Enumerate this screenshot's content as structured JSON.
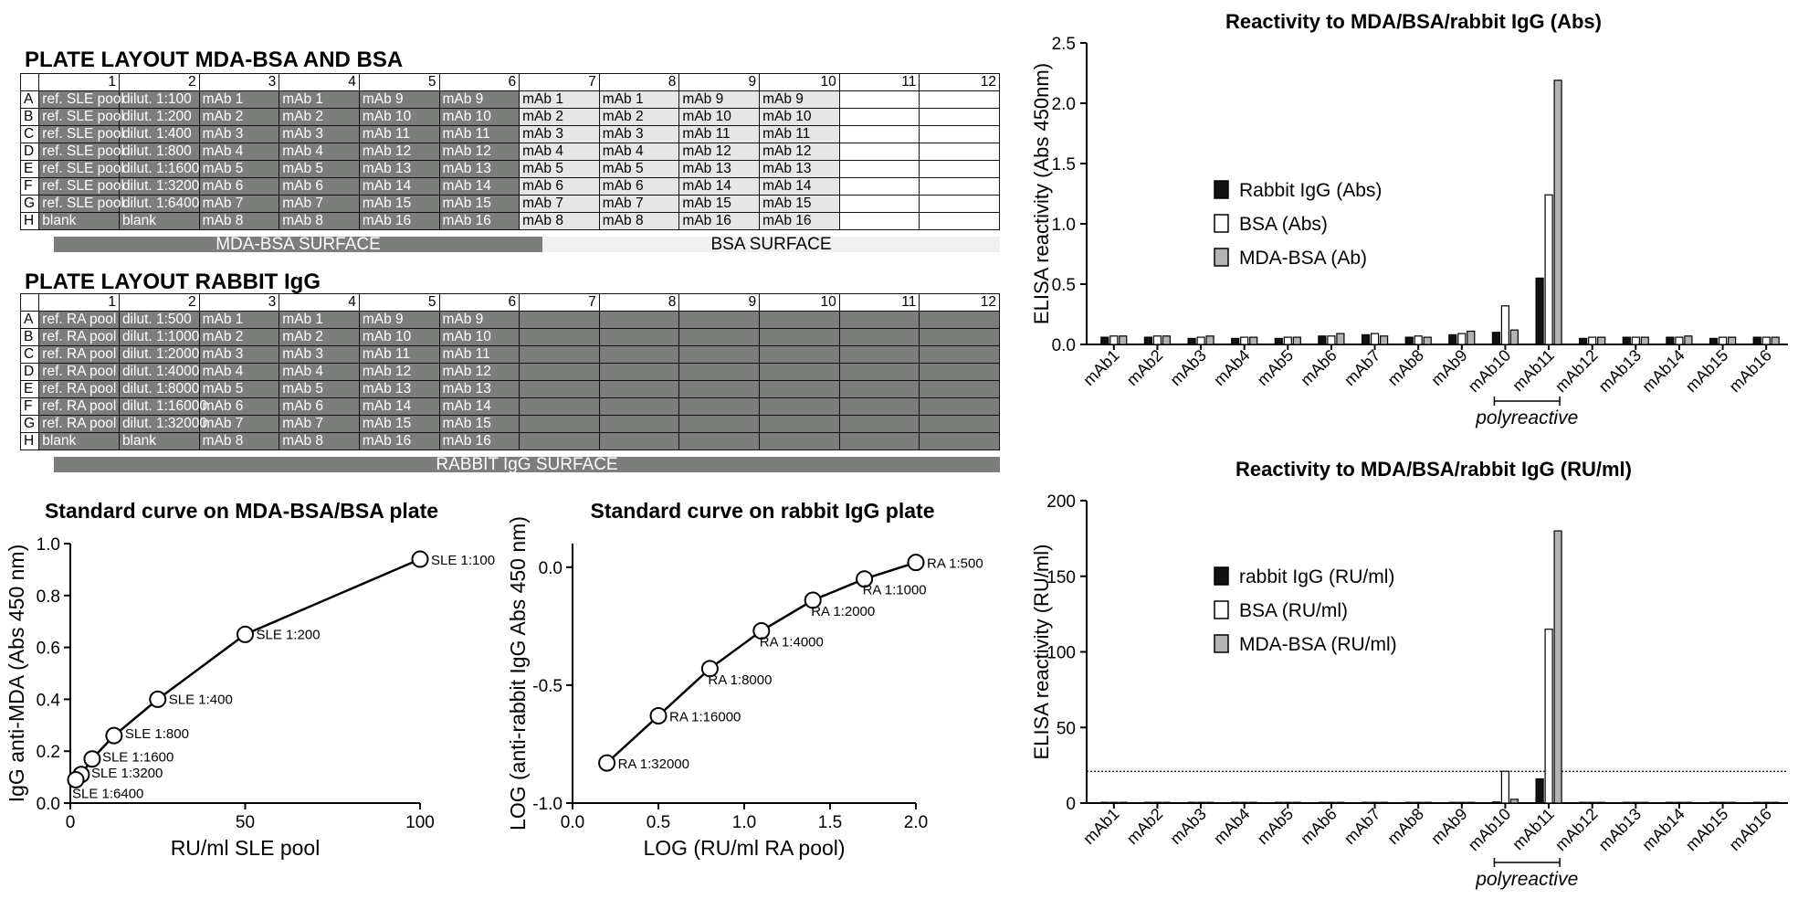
{
  "plate1": {
    "title": "PLATE LAYOUT MDA-BSA AND BSA",
    "columns": [
      "1",
      "2",
      "3",
      "4",
      "5",
      "6",
      "7",
      "8",
      "9",
      "10",
      "11",
      "12"
    ],
    "rows": [
      {
        "label": "A",
        "cells": [
          "ref. SLE pool",
          "dilut. 1:100",
          "mAb 1",
          "mAb 1",
          "mAb 9",
          "mAb 9",
          "mAb 1",
          "mAb 1",
          "mAb 9",
          "mAb 9",
          "",
          ""
        ]
      },
      {
        "label": "B",
        "cells": [
          "ref. SLE pool",
          "dilut. 1:200",
          "mAb 2",
          "mAb 2",
          "mAb 10",
          "mAb 10",
          "mAb 2",
          "mAb 2",
          "mAb 10",
          "mAb 10",
          "",
          ""
        ]
      },
      {
        "label": "C",
        "cells": [
          "ref. SLE pool",
          "dilut. 1:400",
          "mAb 3",
          "mAb 3",
          "mAb 11",
          "mAb 11",
          "mAb 3",
          "mAb 3",
          "mAb 11",
          "mAb 11",
          "",
          ""
        ]
      },
      {
        "label": "D",
        "cells": [
          "ref. SLE pool",
          "dilut. 1:800",
          "mAb 4",
          "mAb 4",
          "mAb 12",
          "mAb 12",
          "mAb 4",
          "mAb 4",
          "mAb 12",
          "mAb 12",
          "",
          ""
        ]
      },
      {
        "label": "E",
        "cells": [
          "ref. SLE pool",
          "dilut. 1:1600",
          "mAb 5",
          "mAb 5",
          "mAb 13",
          "mAb 13",
          "mAb 5",
          "mAb 5",
          "mAb 13",
          "mAb 13",
          "",
          ""
        ]
      },
      {
        "label": "F",
        "cells": [
          "ref. SLE pool",
          "dilut. 1:3200",
          "mAb 6",
          "mAb 6",
          "mAb 14",
          "mAb 14",
          "mAb 6",
          "mAb 6",
          "mAb 14",
          "mAb 14",
          "",
          ""
        ]
      },
      {
        "label": "G",
        "cells": [
          "ref. SLE pool",
          "dilut. 1:6400",
          "mAb 7",
          "mAb 7",
          "mAb 15",
          "mAb 15",
          "mAb 7",
          "mAb 7",
          "mAb 15",
          "mAb 15",
          "",
          ""
        ]
      },
      {
        "label": "H",
        "cells": [
          "blank",
          "blank",
          "mAb 8",
          "mAb 8",
          "mAb 16",
          "mAb 16",
          "mAb 8",
          "mAb 8",
          "mAb 16",
          "mAb 16",
          "",
          ""
        ]
      }
    ],
    "surface_left": "MDA-BSA SURFACE",
    "surface_right": "BSA SURFACE"
  },
  "plate2": {
    "title": "PLATE LAYOUT RABBIT IgG",
    "columns": [
      "1",
      "2",
      "3",
      "4",
      "5",
      "6",
      "7",
      "8",
      "9",
      "10",
      "11",
      "12"
    ],
    "rows": [
      {
        "label": "A",
        "cells": [
          "ref. RA pool",
          "dilut. 1:500",
          "mAb 1",
          "mAb 1",
          "mAb 9",
          "mAb 9",
          "",
          "",
          "",
          "",
          "",
          ""
        ]
      },
      {
        "label": "B",
        "cells": [
          "ref. RA pool",
          "dilut. 1:1000",
          "mAb 2",
          "mAb 2",
          "mAb 10",
          "mAb 10",
          "",
          "",
          "",
          "",
          "",
          ""
        ]
      },
      {
        "label": "C",
        "cells": [
          "ref. RA pool",
          "dilut. 1:2000",
          "mAb 3",
          "mAb 3",
          "mAb 11",
          "mAb 11",
          "",
          "",
          "",
          "",
          "",
          ""
        ]
      },
      {
        "label": "D",
        "cells": [
          "ref. RA pool",
          "dilut. 1:4000",
          "mAb 4",
          "mAb 4",
          "mAb 12",
          "mAb 12",
          "",
          "",
          "",
          "",
          "",
          ""
        ]
      },
      {
        "label": "E",
        "cells": [
          "ref. RA pool",
          "dilut. 1:8000",
          "mAb 5",
          "mAb 5",
          "mAb 13",
          "mAb 13",
          "",
          "",
          "",
          "",
          "",
          ""
        ]
      },
      {
        "label": "F",
        "cells": [
          "ref. RA pool",
          "dilut. 1:16000",
          "mAb 6",
          "mAb 6",
          "mAb 14",
          "mAb 14",
          "",
          "",
          "",
          "",
          "",
          ""
        ]
      },
      {
        "label": "G",
        "cells": [
          "ref. RA pool",
          "dilut. 1:32000",
          "mAb 7",
          "mAb 7",
          "mAb 15",
          "mAb 15",
          "",
          "",
          "",
          "",
          "",
          ""
        ]
      },
      {
        "label": "H",
        "cells": [
          "blank",
          "blank",
          "mAb 8",
          "mAb 8",
          "mAb 16",
          "mAb 16",
          "",
          "",
          "",
          "",
          "",
          ""
        ]
      }
    ],
    "surface": "RABBIT IgG  SURFACE"
  },
  "colors": {
    "dark": "#7b7e7b",
    "light": "#e6e6e6",
    "black": "#111111",
    "white": "#ffffff",
    "grey": "#b2b4b2"
  },
  "chart_data": [
    {
      "id": "std-mda",
      "type": "line",
      "title": "Standard curve on MDA-BSA/BSA plate",
      "xlabel": "RU/ml SLE pool",
      "ylabel": "IgG anti-MDA (Abs 450 nm)",
      "xlim": [
        0,
        100
      ],
      "ylim": [
        0,
        1.0
      ],
      "xticks": [
        0,
        50,
        100
      ],
      "yticks": [
        0.0,
        0.2,
        0.4,
        0.6,
        0.8,
        1.0
      ],
      "xtick_labels": [
        "0",
        "50",
        "100"
      ],
      "ytick_labels": [
        "0.0",
        "0.2",
        "0.4",
        "0.6",
        "0.8",
        "1.0"
      ],
      "points": [
        {
          "x": 100,
          "y": 0.94,
          "label": "SLE 1:100"
        },
        {
          "x": 50,
          "y": 0.65,
          "label": "SLE  1:200"
        },
        {
          "x": 25,
          "y": 0.4,
          "label": "SLE  1:400"
        },
        {
          "x": 12.5,
          "y": 0.26,
          "label": "SLE 1:800"
        },
        {
          "x": 6.25,
          "y": 0.17,
          "label": "SLE  1:1600"
        },
        {
          "x": 3.125,
          "y": 0.11,
          "label": "SLE  1:3200"
        },
        {
          "x": 1.5625,
          "y": 0.09,
          "label": "SLE 1:6400"
        }
      ]
    },
    {
      "id": "std-rabbit",
      "type": "line",
      "title": "Standard curve on rabbit IgG plate",
      "xlabel": "LOG (RU/ml RA pool)",
      "ylabel": "LOG (anti-rabbit IgG Abs 450 nm)",
      "xlim": [
        0,
        2.0
      ],
      "ylim": [
        -1.0,
        0.1
      ],
      "xticks": [
        0,
        0.5,
        1.0,
        1.5,
        2.0
      ],
      "yticks": [
        0.0,
        -0.5,
        -1.0
      ],
      "xtick_labels": [
        "0.0",
        "0.5",
        "1.0",
        "1.5",
        "2.0"
      ],
      "ytick_labels": [
        "0.0",
        "-0.5",
        "-1.0"
      ],
      "points": [
        {
          "x": 2.0,
          "y": 0.02,
          "label": "RA 1:500"
        },
        {
          "x": 1.7,
          "y": -0.05,
          "label": "RA 1:1000"
        },
        {
          "x": 1.4,
          "y": -0.14,
          "label": "RA 1:2000"
        },
        {
          "x": 1.1,
          "y": -0.27,
          "label": "RA 1:4000"
        },
        {
          "x": 0.8,
          "y": -0.43,
          "label": "RA 1:8000"
        },
        {
          "x": 0.5,
          "y": -0.63,
          "label": "RA 1:16000"
        },
        {
          "x": 0.2,
          "y": -0.83,
          "label": "RA 1:32000"
        }
      ]
    },
    {
      "id": "bar-abs",
      "type": "bar",
      "title": "Reactivity to MDA/BSA/rabbit IgG (Abs)",
      "ylabel": "ELISA reactivity (Abs 450nm)",
      "ylim": [
        0,
        2.5
      ],
      "yticks": [
        0.0,
        0.5,
        1.0,
        1.5,
        2.0,
        2.5
      ],
      "ytick_labels": [
        "0.0",
        "0.5",
        "1.0",
        "1.5",
        "2.0",
        "2.5"
      ],
      "categories": [
        "mAb1",
        "mAb2",
        "mAb3",
        "mAb4",
        "mAb5",
        "mAb6",
        "mAb7",
        "mAb8",
        "mAb9",
        "mAb10",
        "mAb11",
        "mAb12",
        "mAb13",
        "mAb14",
        "mAb15",
        "mAb16"
      ],
      "series": [
        {
          "name": "Rabbit IgG (Abs)",
          "color": "#111111",
          "values": [
            0.06,
            0.06,
            0.05,
            0.05,
            0.05,
            0.07,
            0.08,
            0.06,
            0.08,
            0.1,
            0.55,
            0.05,
            0.06,
            0.06,
            0.05,
            0.06
          ]
        },
        {
          "name": "BSA (Abs)",
          "color": "#ffffff",
          "values": [
            0.07,
            0.07,
            0.06,
            0.06,
            0.06,
            0.07,
            0.09,
            0.07,
            0.09,
            0.32,
            1.24,
            0.06,
            0.06,
            0.06,
            0.06,
            0.06
          ]
        },
        {
          "name": "MDA-BSA (Ab)",
          "color": "#b2b4b2",
          "values": [
            0.07,
            0.07,
            0.07,
            0.06,
            0.06,
            0.09,
            0.07,
            0.06,
            0.11,
            0.12,
            2.19,
            0.06,
            0.06,
            0.07,
            0.06,
            0.06
          ]
        }
      ],
      "annotation": "polyreactive",
      "bracket": [
        "mAb10",
        "mAb11"
      ]
    },
    {
      "id": "bar-ru",
      "type": "bar",
      "title": "Reactivity to MDA/BSA/rabbit IgG (RU/ml)",
      "ylabel": "ELISA reactivity (RU/ml)",
      "ylim": [
        0,
        200
      ],
      "yticks": [
        0,
        50,
        100,
        150,
        200
      ],
      "ytick_labels": [
        "0",
        "50",
        "100",
        "150",
        "200"
      ],
      "threshold": 21,
      "categories": [
        "mAb1",
        "mAb2",
        "mAb3",
        "mAb4",
        "mAb5",
        "mAb6",
        "mAb7",
        "mAb8",
        "mAb9",
        "mAb10",
        "mAb11",
        "mAb12",
        "mAb13",
        "mAb14",
        "mAb15",
        "mAb16"
      ],
      "series": [
        {
          "name": "rabbit IgG (RU/ml)",
          "color": "#111111",
          "values": [
            0.5,
            0.5,
            0.5,
            0.5,
            0.5,
            0.5,
            0.5,
            0.5,
            0.5,
            0.7,
            16,
            0.5,
            0.5,
            0.5,
            0.5,
            0.5
          ]
        },
        {
          "name": "BSA (RU/ml)",
          "color": "#ffffff",
          "values": [
            0.5,
            0.5,
            0.5,
            0.5,
            0.5,
            0.5,
            0.5,
            0.5,
            0.5,
            21,
            115,
            0.5,
            0.5,
            0.5,
            0.5,
            0.5
          ]
        },
        {
          "name": "MDA-BSA (RU/ml)",
          "color": "#b2b4b2",
          "values": [
            0.5,
            0.5,
            0.5,
            0.5,
            0.5,
            0.5,
            0.5,
            0.5,
            0.5,
            2.5,
            180,
            0.5,
            0.5,
            0.5,
            0.5,
            0.5
          ]
        }
      ],
      "annotation": "polyreactive",
      "bracket": [
        "mAb10",
        "mAb11"
      ]
    }
  ]
}
